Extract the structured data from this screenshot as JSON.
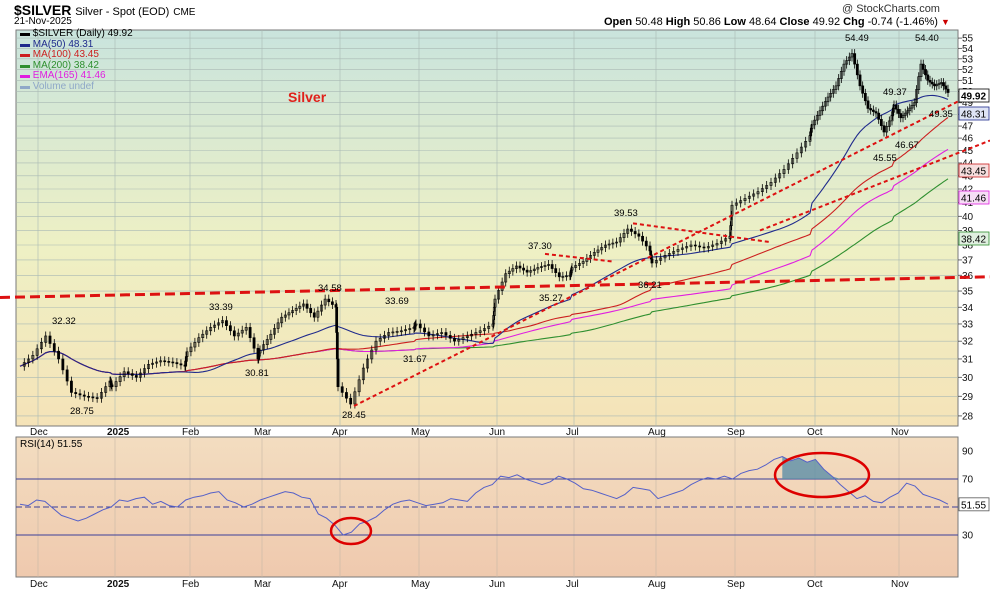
{
  "header": {
    "symbol": "$SILVER",
    "description": "Silver - Spot (EOD)",
    "exchange": "CME",
    "date": "21-Nov-2025",
    "copyright": "@ StockCharts.com",
    "open_label": "Open",
    "open": "50.48",
    "high_label": "High",
    "high": "50.86",
    "low_label": "Low",
    "low": "48.64",
    "close_label": "Close",
    "close": "49.92",
    "chg_label": "Chg",
    "chg": "-0.74 (-1.46%)",
    "chg_icon": "down-triangle-icon"
  },
  "legend": [
    {
      "text": "$SILVER (Daily) 49.92",
      "color": "#000000"
    },
    {
      "text": "MA(50) 48.31",
      "color": "#1f2a8c"
    },
    {
      "text": "MA(100) 43.45",
      "color": "#cc1f1f"
    },
    {
      "text": "MA(200) 38.42",
      "color": "#2f8f2f"
    },
    {
      "text": "EMA(165) 41.46",
      "color": "#e01ee0"
    },
    {
      "text": "Volume undef",
      "color": "#8fa8c8"
    }
  ],
  "annotation_title": "Silver",
  "colors": {
    "candle": "#000000",
    "ma50": "#1f2a8c",
    "ma100": "#cc1f1f",
    "ma200": "#2f8f2f",
    "ema165": "#e01ee0",
    "trend": "#dd1111",
    "rsi": "#5560c8",
    "rsi_fill": "#5b8fa8",
    "circle": "#dd0000"
  },
  "chart_data": [
    {
      "type": "candlestick",
      "title": "$SILVER (Daily) 49.92",
      "x_tick_labels": [
        "Dec",
        "2025",
        "Feb",
        "Mar",
        "Apr",
        "May",
        "Jun",
        "Jul",
        "Aug",
        "Sep",
        "Oct",
        "Nov"
      ],
      "y_tick_labels": [
        28,
        29,
        30,
        31,
        32,
        33,
        34,
        35,
        36,
        37,
        38,
        39,
        40,
        41,
        42,
        43,
        44,
        45,
        46,
        47,
        48,
        49,
        50,
        51,
        52,
        53,
        54,
        55
      ],
      "ylim": [
        27.5,
        55.8
      ],
      "y_scale": "log",
      "grid": true,
      "price_labels": [
        "32.32",
        "28.75",
        "33.39",
        "30.81",
        "34.58",
        "28.45",
        "33.69",
        "31.67",
        "37.30",
        "35.27",
        "39.53",
        "36.21",
        "54.49",
        "45.55",
        "54.40",
        "49.37",
        "46.67",
        "49.35"
      ],
      "axis_tags": [
        {
          "name": "close",
          "value": "49.92"
        },
        {
          "name": "ma50",
          "value": "48.31"
        },
        {
          "name": "ma100",
          "value": "43.45"
        },
        {
          "name": "ema165",
          "value": "41.46"
        },
        {
          "name": "ma200",
          "value": "38.42"
        }
      ],
      "close_path": [
        [
          "Dec",
          30.6
        ],
        [
          "Dec",
          31.2
        ],
        [
          "Dec",
          32.3
        ],
        [
          "Dec",
          31.0
        ],
        [
          "Dec",
          29.2
        ],
        [
          "Dec",
          29.0
        ],
        [
          "Dec",
          28.9
        ],
        [
          "Dec",
          29.8
        ],
        [
          "2025",
          29.5
        ],
        [
          "2025",
          30.3
        ],
        [
          "2025",
          30.0
        ],
        [
          "2025",
          30.7
        ],
        [
          "2025",
          30.9
        ],
        [
          "2025",
          30.8
        ],
        [
          "2025",
          30.6
        ],
        [
          "Feb",
          31.4
        ],
        [
          "Feb",
          32.2
        ],
        [
          "Feb",
          32.8
        ],
        [
          "Feb",
          33.2
        ],
        [
          "Feb",
          32.3
        ],
        [
          "Feb",
          32.8
        ],
        [
          "Feb",
          31.0
        ],
        [
          "Mar",
          31.5
        ],
        [
          "Mar",
          32.4
        ],
        [
          "Mar",
          33.4
        ],
        [
          "Mar",
          33.8
        ],
        [
          "Mar",
          34.2
        ],
        [
          "Mar",
          33.4
        ],
        [
          "Mar",
          34.5
        ],
        [
          "Mar",
          34.0
        ],
        [
          "Apr",
          29.5
        ],
        [
          "Apr",
          28.6
        ],
        [
          "Apr",
          30.5
        ],
        [
          "Apr",
          32.0
        ],
        [
          "Apr",
          32.5
        ],
        [
          "Apr",
          32.6
        ],
        [
          "Apr",
          32.8
        ],
        [
          "May",
          33.0
        ],
        [
          "May",
          32.3
        ],
        [
          "May",
          32.5
        ],
        [
          "May",
          32.0
        ],
        [
          "May",
          32.3
        ],
        [
          "May",
          32.6
        ],
        [
          "May",
          33.0
        ],
        [
          "Jun",
          34.5
        ],
        [
          "Jun",
          36.1
        ],
        [
          "Jun",
          36.6
        ],
        [
          "Jun",
          36.2
        ],
        [
          "Jun",
          36.5
        ],
        [
          "Jun",
          36.7
        ],
        [
          "Jun",
          35.9
        ],
        [
          "Jun",
          36.0
        ],
        [
          "Jul",
          36.5
        ],
        [
          "Jul",
          36.9
        ],
        [
          "Jul",
          37.5
        ],
        [
          "Jul",
          38.0
        ],
        [
          "Jul",
          38.2
        ],
        [
          "Jul",
          39.1
        ],
        [
          "Jul",
          38.6
        ],
        [
          "Jul",
          37.6
        ],
        [
          "Aug",
          36.8
        ],
        [
          "Aug",
          37.3
        ],
        [
          "Aug",
          37.7
        ],
        [
          "Aug",
          38.0
        ],
        [
          "Aug",
          37.8
        ],
        [
          "Aug",
          38.1
        ],
        [
          "Aug",
          38.6
        ],
        [
          "Sep",
          40.8
        ],
        [
          "Sep",
          41.3
        ],
        [
          "Sep",
          41.8
        ],
        [
          "Sep",
          42.5
        ],
        [
          "Sep",
          43.5
        ],
        [
          "Sep",
          44.8
        ],
        [
          "Sep",
          46.2
        ],
        [
          "Oct",
          47.1
        ],
        [
          "Oct",
          48.3
        ],
        [
          "Oct",
          49.5
        ],
        [
          "Oct",
          50.5
        ],
        [
          "Oct",
          52.5
        ],
        [
          "Oct",
          53.5
        ],
        [
          "Oct",
          50.5
        ],
        [
          "Oct",
          48.5
        ],
        [
          "Oct",
          48.1
        ],
        [
          "Oct",
          46.5
        ],
        [
          "Oct",
          47.9
        ],
        [
          "Nov",
          48.8
        ],
        [
          "Nov",
          47.7
        ],
        [
          "Nov",
          48.3
        ],
        [
          "Nov",
          49.0
        ],
        [
          "Nov",
          52.5
        ],
        [
          "Nov",
          51.0
        ],
        [
          "Nov",
          50.5
        ],
        [
          "Nov",
          50.8
        ],
        [
          "Nov",
          49.9
        ]
      ]
    },
    {
      "type": "line",
      "title": "RSI(14) 51.55",
      "ylim": [
        0,
        100
      ],
      "y_tick_labels": [
        30,
        50,
        70,
        90
      ],
      "reference_lines": [
        30,
        50,
        70
      ],
      "current_value_tag": "51.55",
      "x_tick_labels": [
        "Dec",
        "2025",
        "Feb",
        "Mar",
        "Apr",
        "May",
        "Jun",
        "Jul",
        "Aug",
        "Sep",
        "Oct",
        "Nov"
      ],
      "series": [
        {
          "values": [
            52,
            51,
            55,
            54,
            49,
            44,
            42,
            40,
            42,
            45,
            48,
            50,
            55,
            54,
            56,
            57,
            52,
            54,
            51,
            50,
            55,
            57,
            58,
            60,
            61,
            55,
            53,
            50,
            52,
            55,
            57,
            59,
            61,
            60,
            57,
            56,
            45,
            42,
            37,
            30,
            32,
            38,
            40,
            43,
            48,
            52,
            54,
            55,
            53,
            51,
            52,
            53,
            56,
            55,
            54,
            60,
            64,
            66,
            72,
            71,
            73,
            70,
            68,
            66,
            68,
            72,
            70,
            67,
            63,
            62,
            60,
            58,
            56,
            59,
            64,
            63,
            62,
            56,
            58,
            60,
            62,
            66,
            69,
            71,
            70,
            72,
            70,
            74,
            76,
            77,
            80,
            84,
            86,
            83,
            85,
            82,
            84,
            77,
            72,
            66,
            61,
            56,
            58,
            54,
            53,
            57,
            60,
            67,
            65,
            59,
            57,
            55,
            52
          ]
        }
      ]
    }
  ]
}
